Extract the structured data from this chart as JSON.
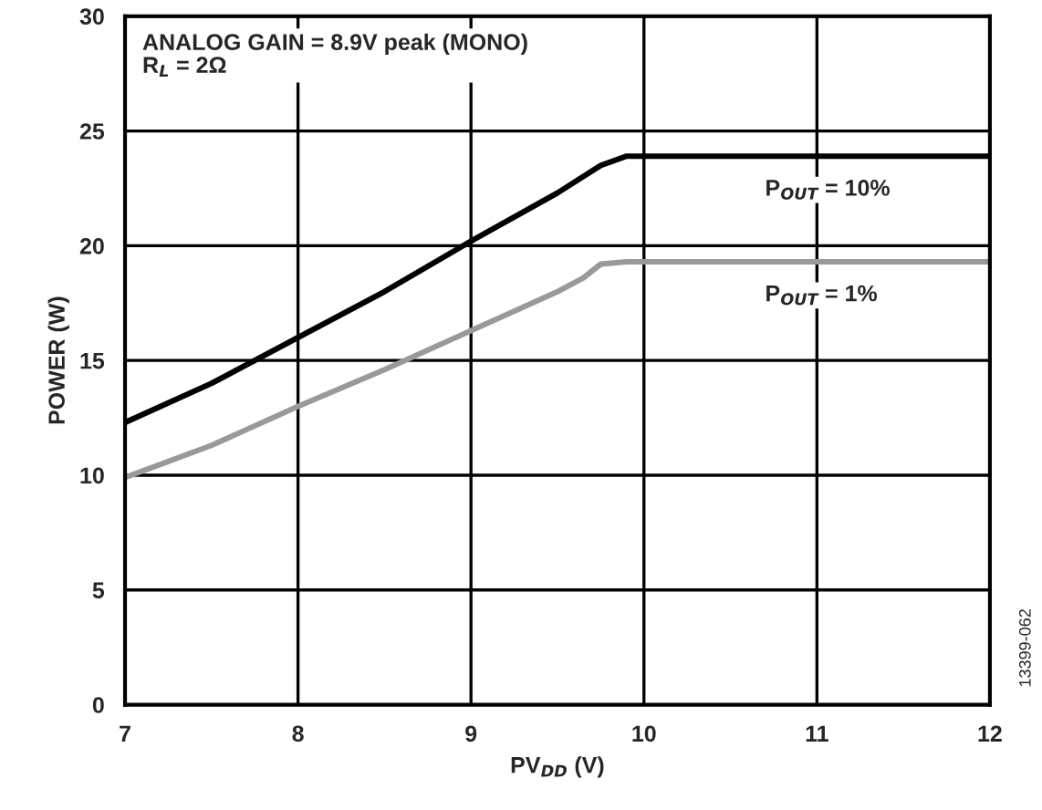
{
  "chart_data": {
    "type": "line",
    "xlabel": "PV$_{DD}$ (V)",
    "ylabel": "POWER (W)",
    "xlim": [
      7,
      12
    ],
    "xticks": [
      7,
      8,
      9,
      10,
      11,
      12
    ],
    "ylim": [
      0,
      30
    ],
    "yticks": [
      0,
      5,
      10,
      15,
      20,
      25,
      30
    ],
    "grid": true,
    "legend": false,
    "series": [
      {
        "name": "P$_{OUT}$ = 10%",
        "color": "#000000",
        "x": [
          7,
          7.5,
          8,
          8.5,
          9,
          9.5,
          9.75,
          9.9,
          12
        ],
        "values": [
          12.3,
          14.0,
          16.0,
          18.0,
          20.2,
          22.3,
          23.5,
          23.9,
          23.9
        ]
      },
      {
        "name": "P$_{OUT}$ = 1%",
        "color": "#999999",
        "x": [
          7,
          7.5,
          8,
          8.5,
          9,
          9.5,
          9.65,
          9.75,
          9.9,
          12
        ],
        "values": [
          9.9,
          11.3,
          13.0,
          14.6,
          16.3,
          18.0,
          18.6,
          19.2,
          19.3,
          19.3
        ]
      }
    ],
    "annotations": [
      "ANALOG GAIN = 8.9V peak (MONO)",
      "R$_{L}$ = 2Ω",
      "13399-062"
    ]
  }
}
